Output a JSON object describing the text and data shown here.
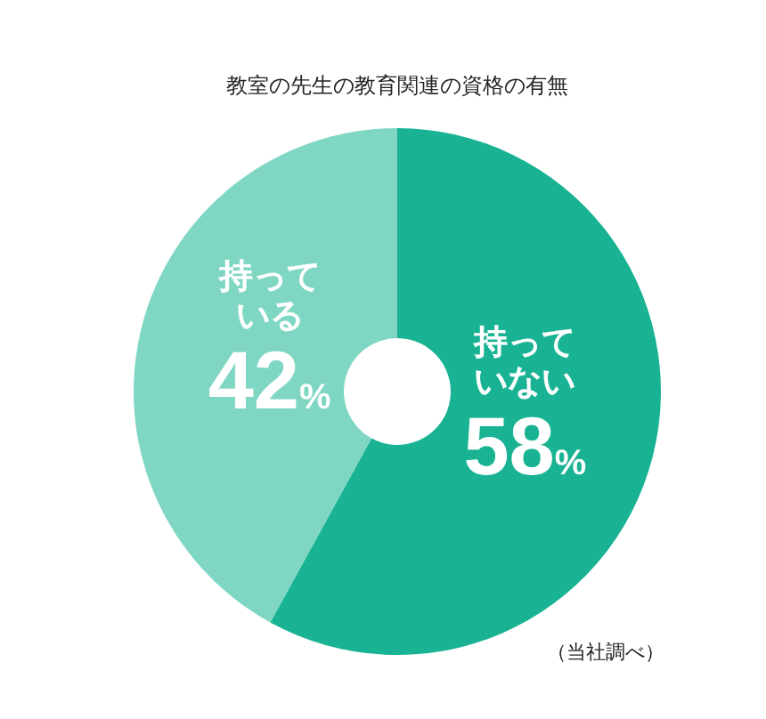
{
  "chart_data": {
    "type": "donut",
    "title": "教室の先生の教育関連の資格の有無",
    "categories": [
      "持っていない",
      "持っている"
    ],
    "values": [
      58,
      42
    ],
    "colors": [
      "#19b394",
      "#7fd7c3"
    ],
    "value_labels": [
      "58%",
      "42%"
    ],
    "annotations": [
      "（当社調べ）"
    ]
  }
}
